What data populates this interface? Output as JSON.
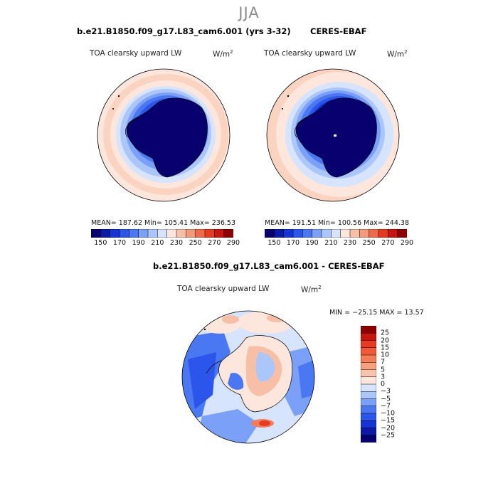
{
  "page": {
    "season": "JJA"
  },
  "panels": [
    {
      "title": "b.e21.B1850.f09_g17.L83_cam6.001 (yrs 3-32)",
      "variable": "TOA clearsky upward LW",
      "units_base": "W/m",
      "units_exp": "2",
      "stats": "MEAN= 187.62   Min= 105.41   Max= 236.53"
    },
    {
      "title": "CERES-EBAF",
      "variable": "TOA clearsky upward LW",
      "units_base": "W/m",
      "units_exp": "2",
      "stats": "MEAN= 191.51   Min= 100.56   Max= 244.38"
    }
  ],
  "diff_panel": {
    "title": "b.e21.B1850.f09_g17.L83_cam6.001 - CERES-EBAF",
    "variable": "TOA clearsky upward LW",
    "units_base": "W/m",
    "units_exp": "2",
    "minmax": "MIN = −25.15  MAX =  13.57"
  },
  "colorbar_abs": {
    "colors": [
      "#08006e",
      "#0c1aa8",
      "#1633d6",
      "#2c55ec",
      "#4a77f2",
      "#7aa0f7",
      "#aac6fb",
      "#d6e4fd",
      "#fde6dc",
      "#f7c0a6",
      "#f49a7a",
      "#f06a4a",
      "#e63b22",
      "#c8150e",
      "#8e0000"
    ],
    "labels": [
      "150",
      "170",
      "190",
      "210",
      "230",
      "250",
      "270",
      "290"
    ]
  },
  "colorbar_diff": {
    "colors": [
      "#8e0000",
      "#c8150e",
      "#e63b22",
      "#f05a36",
      "#f47c56",
      "#f7a07e",
      "#f9c4ae",
      "#fde6dc",
      "#d6e4fd",
      "#aac6fb",
      "#7aa0f7",
      "#4a77f2",
      "#2c55ec",
      "#1633d6",
      "#0c1aa8",
      "#08006e"
    ],
    "labels": [
      "25",
      "20",
      "15",
      "10",
      "7",
      "5",
      "3",
      "0",
      "−3",
      "−5",
      "−7",
      "−10",
      "−15",
      "−20",
      "−25"
    ]
  }
}
